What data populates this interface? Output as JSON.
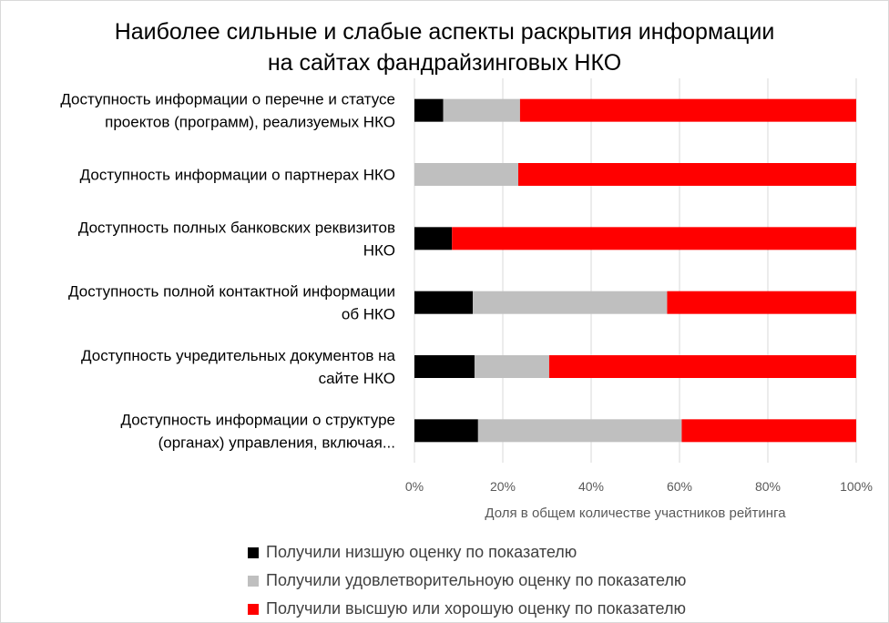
{
  "colors": {
    "lowest": "#000000",
    "satisfactory": "#bfbfbf",
    "high": "#ff0000",
    "grid": "#d9d9d9",
    "axis_text": "#595959"
  },
  "chart_data": {
    "type": "bar",
    "orientation": "horizontal",
    "stacked": true,
    "title_lines": [
      "Наиболее сильные и слабые аспекты раскрытия информации",
      "на сайтах фандрайзинговых НКО"
    ],
    "categories": [
      [
        "Доступность информации о перечне и статусе",
        "проектов (программ), реализуемых НКО"
      ],
      [
        "Доступность информации о партнерах НКО"
      ],
      [
        "Доступность полных банковских реквизитов",
        "НКО"
      ],
      [
        "Доступность полной контактной информации",
        "об НКО"
      ],
      [
        "Доступность учредительных документов на",
        "сайте НКО"
      ],
      [
        "Доступность информации о структуре",
        "(органах) управления, включая..."
      ]
    ],
    "series": [
      {
        "name": "Получили низшую оценку по показателю",
        "color": "#000000",
        "values": [
          6.5,
          0,
          8.5,
          13.2,
          13.6,
          14.4
        ]
      },
      {
        "name": "Получили удовлетворительноую оценку по показателю",
        "color": "#bfbfbf",
        "values": [
          17.4,
          23.5,
          0,
          44.0,
          16.9,
          46.1
        ]
      },
      {
        "name": "Получили высшую или хорошую оценку по показателю",
        "color": "#ff0000",
        "values": [
          76.1,
          76.5,
          91.5,
          42.8,
          69.5,
          39.5
        ]
      }
    ],
    "xlim": [
      0,
      100
    ],
    "xticks": [
      "0%",
      "20%",
      "40%",
      "60%",
      "80%",
      "100%"
    ],
    "xlabel": "Доля в общем количестве участников рейтинга",
    "grid": true,
    "legend_position": "bottom"
  }
}
